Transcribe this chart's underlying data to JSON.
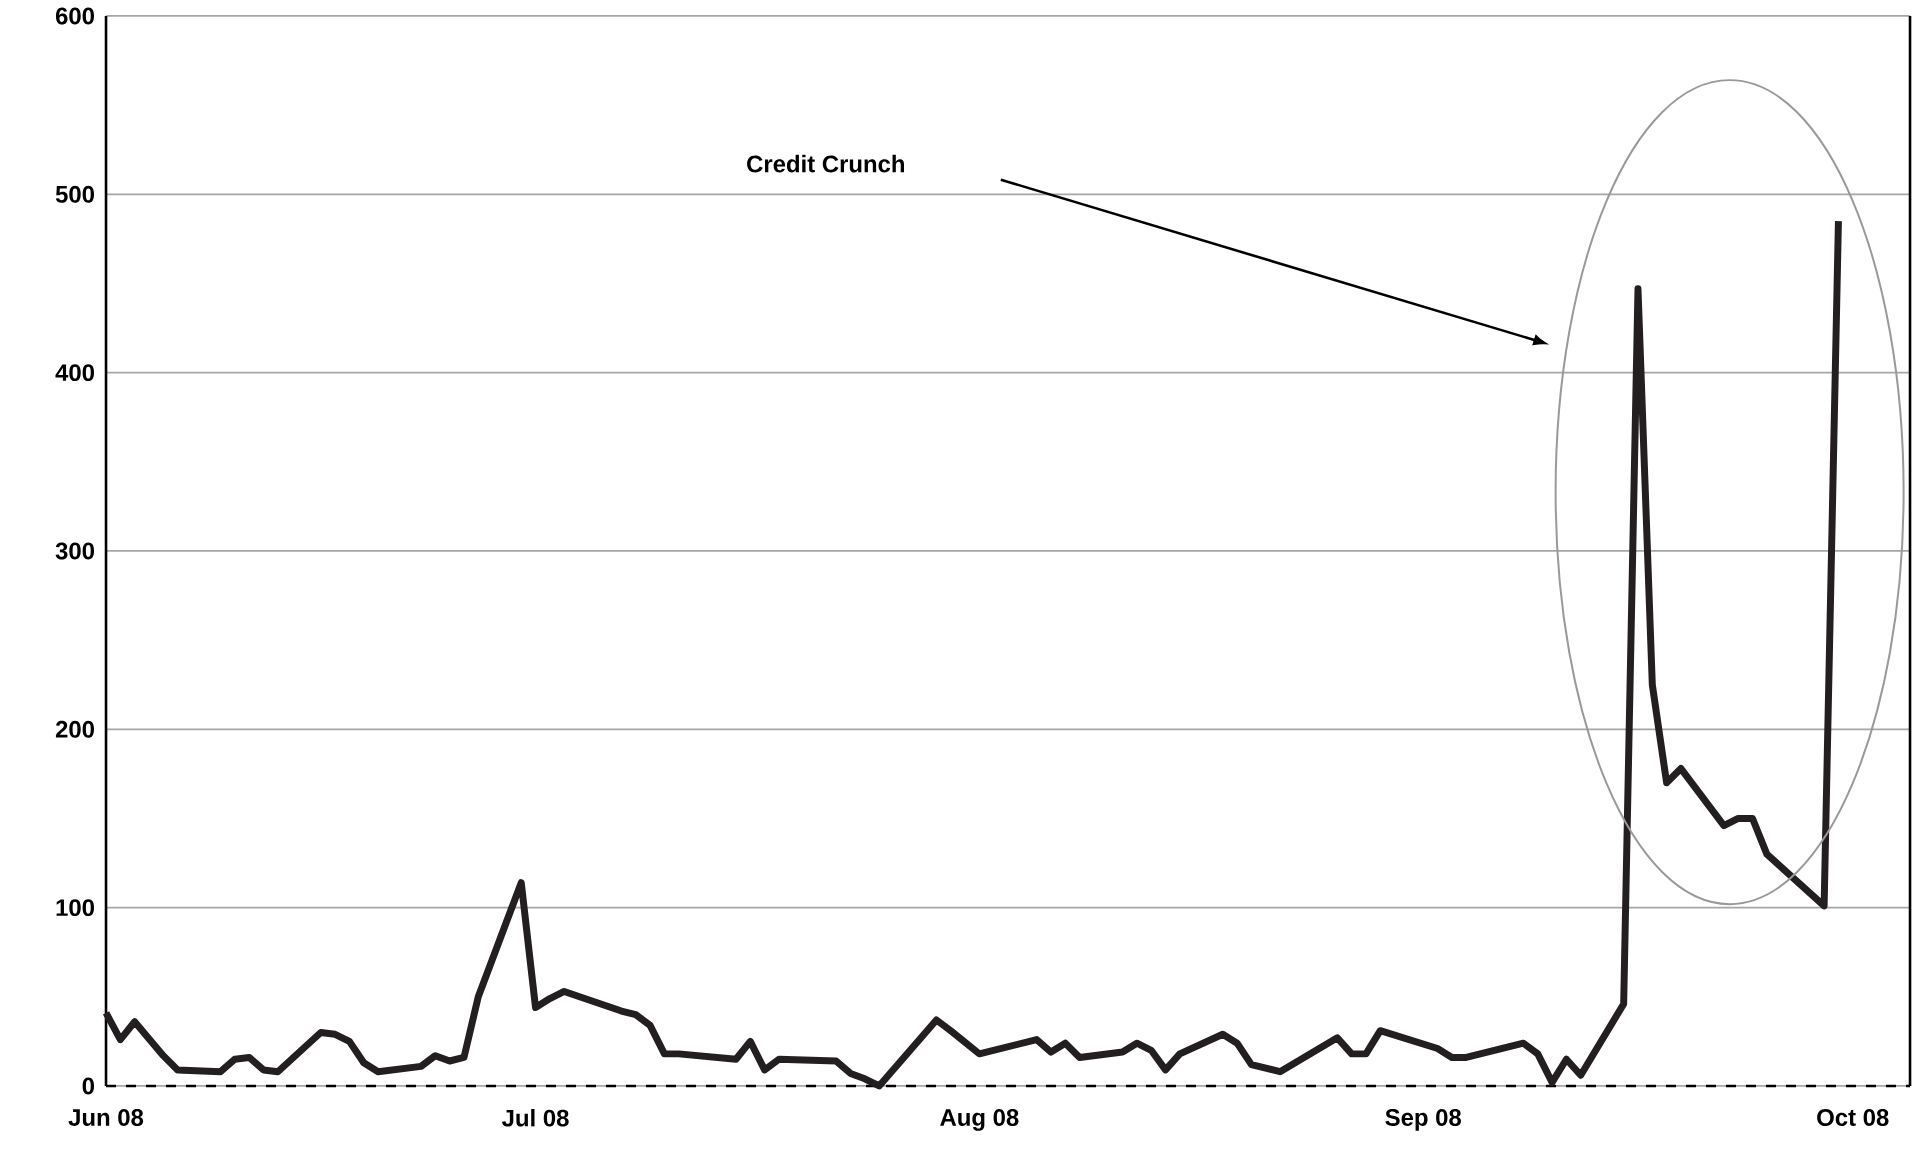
{
  "chart_data": {
    "type": "line",
    "color": "#231f20",
    "line_style": "solid",
    "marker": "none",
    "grid": "y",
    "x": [
      "2008-06-01",
      "2008-06-02",
      "2008-06-03",
      "2008-06-05",
      "2008-06-06",
      "2008-06-09",
      "2008-06-10",
      "2008-06-11",
      "2008-06-12",
      "2008-06-13",
      "2008-06-16",
      "2008-06-17",
      "2008-06-18",
      "2008-06-19",
      "2008-06-20",
      "2008-06-23",
      "2008-06-24",
      "2008-06-25",
      "2008-06-26",
      "2008-06-27",
      "2008-06-30",
      "2008-07-01",
      "2008-07-02",
      "2008-07-03",
      "2008-07-07",
      "2008-07-08",
      "2008-07-09",
      "2008-07-10",
      "2008-07-11",
      "2008-07-15",
      "2008-07-16",
      "2008-07-17",
      "2008-07-18",
      "2008-07-22",
      "2008-07-23",
      "2008-07-24",
      "2008-07-25",
      "2008-07-29",
      "2008-07-30",
      "2008-08-01",
      "2008-08-05",
      "2008-08-06",
      "2008-08-07",
      "2008-08-08",
      "2008-08-11",
      "2008-08-12",
      "2008-08-13",
      "2008-08-14",
      "2008-08-15",
      "2008-08-18",
      "2008-08-19",
      "2008-08-20",
      "2008-08-22",
      "2008-08-26",
      "2008-08-27",
      "2008-08-28",
      "2008-08-29",
      "2008-09-02",
      "2008-09-03",
      "2008-09-04",
      "2008-09-08",
      "2008-09-09",
      "2008-09-10",
      "2008-09-11",
      "2008-09-12",
      "2008-09-15",
      "2008-09-16",
      "2008-09-17",
      "2008-09-18",
      "2008-09-19",
      "2008-09-22",
      "2008-09-23",
      "2008-09-24",
      "2008-09-25",
      "2008-09-29",
      "2008-09-30"
    ],
    "values": [
      41,
      26,
      36,
      17,
      9,
      8,
      15,
      16,
      9,
      8,
      30,
      29,
      25,
      13,
      8,
      11,
      17,
      14,
      16,
      50,
      114,
      44,
      49,
      53,
      42,
      40,
      34,
      18,
      18,
      15,
      25,
      9,
      15,
      14,
      7,
      4,
      0,
      37,
      31,
      18,
      26,
      19,
      24,
      16,
      19,
      24,
      20,
      9,
      18,
      29,
      24,
      12,
      8,
      27,
      18,
      18,
      31,
      21,
      16,
      16,
      24,
      18,
      2,
      15,
      6,
      46,
      447,
      225,
      170,
      178,
      146,
      150,
      150,
      130,
      101,
      485
    ],
    "xlim": [
      "2008-06-01",
      "2008-10-05"
    ],
    "xticks": [
      {
        "value": "2008-06-01",
        "label": "Jun 08"
      },
      {
        "value": "2008-07-01",
        "label": "Jul 08"
      },
      {
        "value": "2008-08-01",
        "label": "Aug 08"
      },
      {
        "value": "2008-09-01",
        "label": "Sep 08"
      },
      {
        "value": "2008-10-01",
        "label": "Oct 08"
      }
    ],
    "ylim": [
      0,
      600
    ],
    "yticks": [
      0,
      100,
      200,
      300,
      400,
      500,
      600
    ],
    "annotations": [
      "Credit Crunch"
    ]
  }
}
